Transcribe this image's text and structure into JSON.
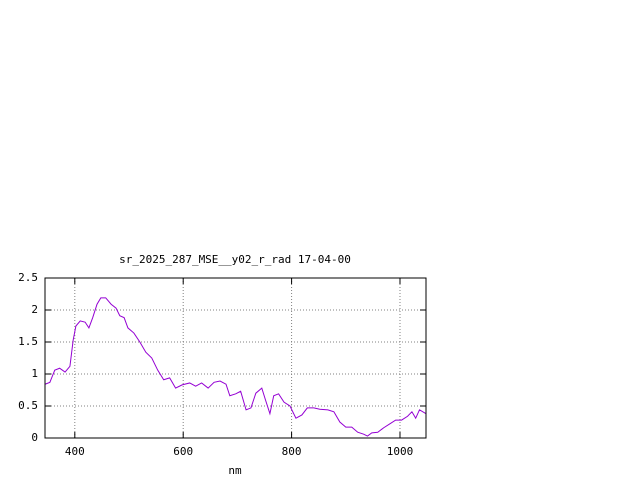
{
  "chart_data": {
    "type": "line",
    "title": "sr_2025_287_MSE__y02_r_rad 17-04-00",
    "x_label": "nm",
    "x": [
      345,
      354,
      363,
      372,
      382,
      391,
      397,
      402,
      410,
      419,
      426,
      433,
      441,
      448,
      457,
      467,
      476,
      483,
      491,
      498,
      509,
      520,
      531,
      542,
      553,
      564,
      575,
      586,
      598,
      612,
      623,
      634,
      646,
      657,
      668,
      679,
      686,
      697,
      706,
      716,
      725,
      734,
      745,
      752,
      760,
      767,
      776,
      786,
      797,
      808,
      819,
      829,
      841,
      852,
      867,
      878,
      889,
      900,
      911,
      922,
      933,
      940,
      948,
      959,
      970,
      981,
      992,
      1003,
      1014,
      1022,
      1029,
      1036,
      1048
    ],
    "values": [
      0.84,
      0.87,
      1.06,
      1.09,
      1.03,
      1.12,
      1.53,
      1.75,
      1.83,
      1.81,
      1.72,
      1.88,
      2.09,
      2.19,
      2.19,
      2.09,
      2.03,
      1.91,
      1.88,
      1.72,
      1.64,
      1.5,
      1.34,
      1.25,
      1.06,
      0.91,
      0.94,
      0.78,
      0.83,
      0.86,
      0.81,
      0.86,
      0.78,
      0.87,
      0.89,
      0.84,
      0.66,
      0.69,
      0.73,
      0.44,
      0.47,
      0.7,
      0.78,
      0.59,
      0.38,
      0.66,
      0.69,
      0.56,
      0.5,
      0.31,
      0.36,
      0.47,
      0.47,
      0.45,
      0.44,
      0.41,
      0.25,
      0.17,
      0.17,
      0.09,
      0.06,
      0.03,
      0.08,
      0.09,
      0.16,
      0.22,
      0.28,
      0.28,
      0.34,
      0.41,
      0.31,
      0.44,
      0.38
    ],
    "color": "#9400d3",
    "xlim": [
      345,
      1048
    ],
    "xticks": [
      400,
      600,
      800,
      1000
    ],
    "ylim": [
      0,
      2.5
    ],
    "yticks": [
      0,
      0.5,
      1,
      1.5,
      2,
      2.5
    ],
    "grid": true
  }
}
